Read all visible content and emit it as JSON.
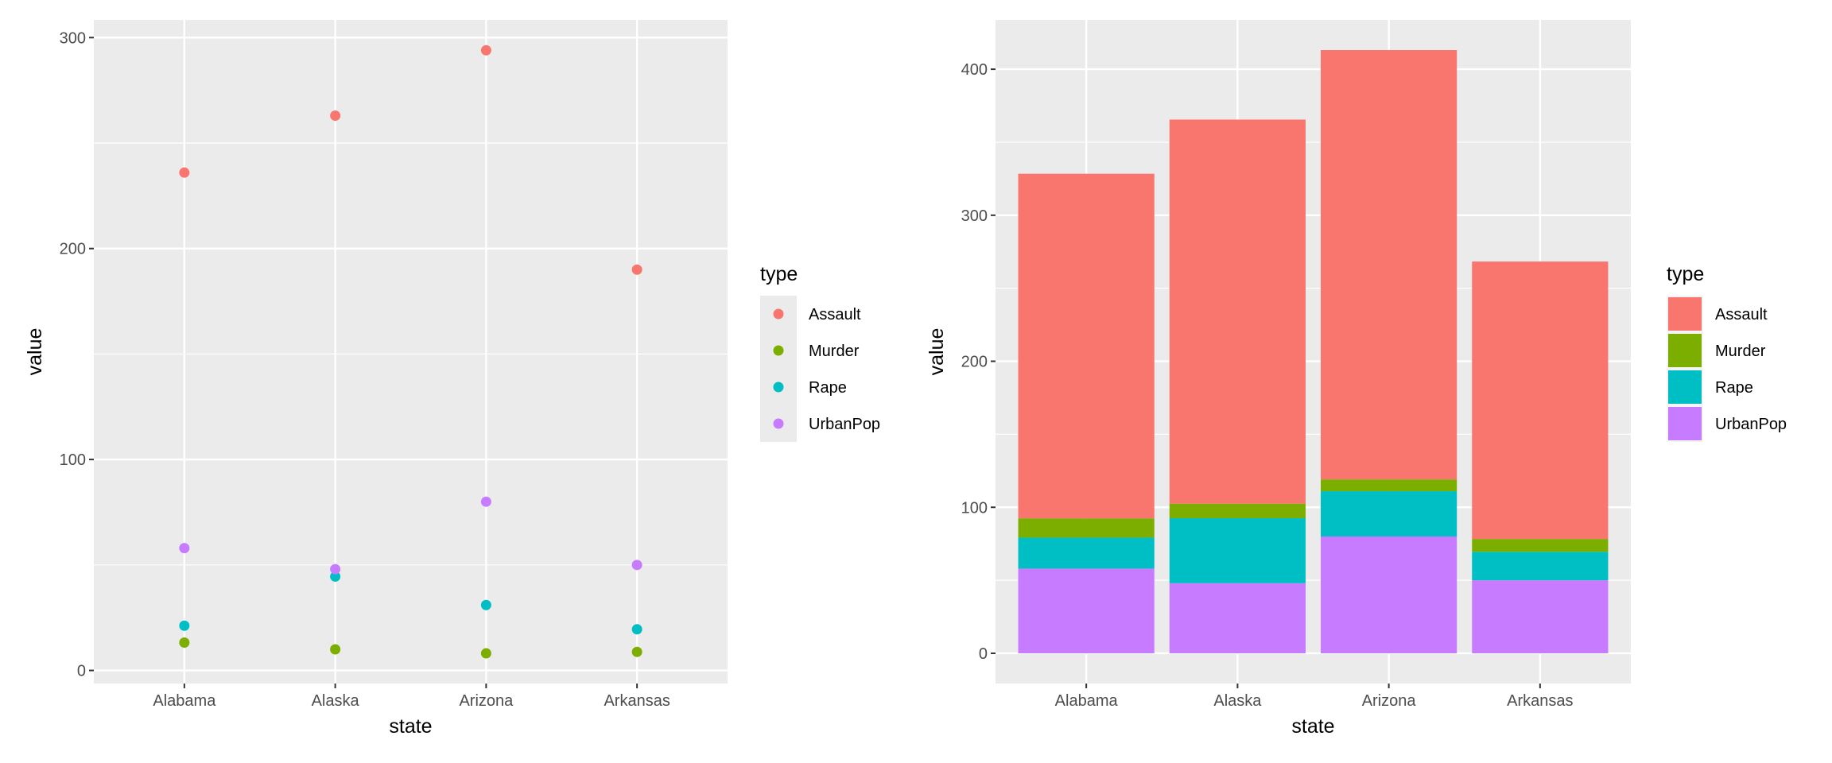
{
  "chart_data": [
    {
      "type": "scatter",
      "title": "",
      "xlabel": "state",
      "ylabel": "value",
      "categories": [
        "Alabama",
        "Alaska",
        "Arizona",
        "Arkansas"
      ],
      "yticks": [
        0,
        100,
        200,
        300
      ],
      "ylim": [
        -6.2,
        308.4
      ],
      "grid": true,
      "legend": {
        "title": "type",
        "placement": "right"
      },
      "series": [
        {
          "name": "Assault",
          "color": "#F8766D",
          "values": [
            236,
            263,
            294,
            190
          ]
        },
        {
          "name": "Murder",
          "color": "#7CAE00",
          "values": [
            13.2,
            10.0,
            8.1,
            8.8
          ]
        },
        {
          "name": "Rape",
          "color": "#00BFC4",
          "values": [
            21.2,
            44.5,
            31.0,
            19.5
          ]
        },
        {
          "name": "UrbanPop",
          "color": "#C77CFF",
          "values": [
            58,
            48,
            80,
            50
          ]
        }
      ]
    },
    {
      "type": "bar",
      "stacked": true,
      "title": "",
      "xlabel": "state",
      "ylabel": "value",
      "categories": [
        "Alabama",
        "Alaska",
        "Arizona",
        "Arkansas"
      ],
      "yticks": [
        0,
        100,
        200,
        300,
        400
      ],
      "ylim": [
        -20.7,
        433.8
      ],
      "grid": true,
      "legend": {
        "title": "type",
        "placement": "right"
      },
      "series": [
        {
          "name": "Assault",
          "color": "#F8766D",
          "values": [
            236,
            263,
            294,
            190
          ]
        },
        {
          "name": "Murder",
          "color": "#7CAE00",
          "values": [
            13.2,
            10.0,
            8.1,
            8.8
          ]
        },
        {
          "name": "Rape",
          "color": "#00BFC4",
          "values": [
            21.2,
            44.5,
            31.0,
            19.5
          ]
        },
        {
          "name": "UrbanPop",
          "color": "#C77CFF",
          "values": [
            58,
            48,
            80,
            50
          ]
        }
      ]
    }
  ]
}
